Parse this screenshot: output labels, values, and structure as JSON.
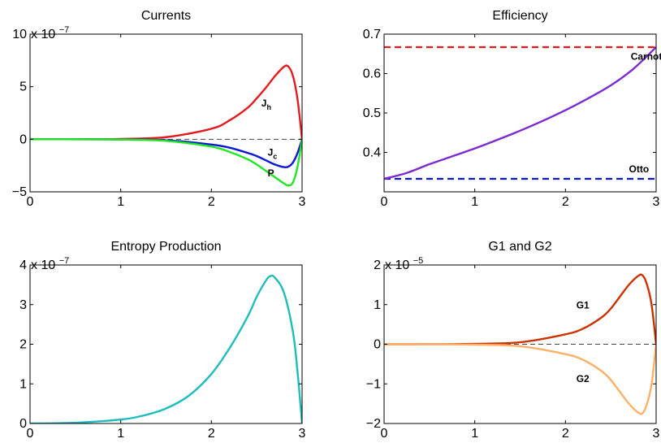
{
  "colors": {
    "axis": "#000000"
  },
  "chart_data": [
    {
      "id": "currents",
      "type": "line",
      "title": "Currents",
      "xlim": [
        0,
        3
      ],
      "ylim": [
        -5,
        10
      ],
      "xticks": [
        0,
        1,
        2,
        3
      ],
      "yticks": [
        -5,
        0,
        5,
        10
      ],
      "xtick_labels": [
        "0",
        "1",
        "2",
        "3"
      ],
      "ytick_labels": [
        "−5",
        "0",
        "5",
        "10"
      ],
      "exponent": {
        "base": "x 10",
        "power": "−7"
      },
      "x": [
        0,
        0.5,
        1.0,
        1.5,
        2.0,
        2.2,
        2.4,
        2.5,
        2.6,
        2.7,
        2.8,
        2.85,
        2.9,
        2.95,
        3.0
      ],
      "series": [
        {
          "name": "J",
          "label_sub": "h",
          "color": "#e41a1c",
          "values": [
            0,
            0.003,
            0.03,
            0.2,
            1.0,
            1.8,
            3.0,
            3.9,
            4.9,
            6.0,
            6.9,
            6.9,
            6.0,
            3.8,
            0
          ]
        },
        {
          "name": "J",
          "label_sub": "c",
          "color": "#0a18d6",
          "values": [
            0,
            -0.002,
            -0.02,
            -0.1,
            -0.5,
            -0.8,
            -1.3,
            -1.6,
            -2.0,
            -2.4,
            -2.65,
            -2.6,
            -2.2,
            -1.3,
            0
          ]
        },
        {
          "name": "P",
          "color": "#22e622",
          "values": [
            0,
            -0.003,
            -0.03,
            -0.15,
            -0.7,
            -1.2,
            -1.9,
            -2.4,
            -3.0,
            -3.6,
            -4.2,
            -4.4,
            -4.1,
            -2.6,
            0
          ]
        }
      ],
      "annotations": [
        {
          "text": "J",
          "sub": "h",
          "x": 2.55,
          "y": 3.1
        },
        {
          "text": "J",
          "sub": "c",
          "x": 2.62,
          "y": -1.55
        },
        {
          "text": "P",
          "x": 2.62,
          "y": -3.55
        }
      ],
      "reference_line": {
        "y": 0,
        "color": "#444444"
      }
    },
    {
      "id": "efficiency",
      "type": "line",
      "title": "Efficiency",
      "xlim": [
        0,
        3
      ],
      "ylim": [
        0.3,
        0.7
      ],
      "xticks": [
        0,
        1,
        2,
        3
      ],
      "yticks": [
        0.4,
        0.5,
        0.6,
        0.7
      ],
      "xtick_labels": [
        "0",
        "1",
        "2",
        "3"
      ],
      "ytick_labels": [
        "0.4",
        "0.5",
        "0.6",
        "0.7"
      ],
      "x": [
        0,
        0.25,
        0.5,
        0.75,
        1.0,
        1.25,
        1.5,
        1.75,
        2.0,
        2.25,
        2.5,
        2.75,
        3.0
      ],
      "series": [
        {
          "name": "Efficiency",
          "color": "#7b2bd1",
          "values": [
            0.333,
            0.348,
            0.37,
            0.39,
            0.41,
            0.432,
            0.455,
            0.48,
            0.507,
            0.537,
            0.57,
            0.612,
            0.667
          ]
        }
      ],
      "hlines": [
        {
          "name": "Carnot",
          "y": 0.667,
          "color": "#e41a1c"
        },
        {
          "name": "Otto",
          "y": 0.333,
          "color": "#0a18d6"
        }
      ],
      "annotations": [
        {
          "text": "Carnot",
          "x": 2.72,
          "y": 0.635
        },
        {
          "text": "Otto",
          "x": 2.7,
          "y": 0.35
        }
      ]
    },
    {
      "id": "entropy",
      "type": "line",
      "title": "Entropy Production",
      "xlim": [
        0,
        3
      ],
      "ylim": [
        0,
        4
      ],
      "xticks": [
        0,
        1,
        2,
        3
      ],
      "yticks": [
        0,
        1,
        2,
        3,
        4
      ],
      "xtick_labels": [
        "0",
        "1",
        "2",
        "3"
      ],
      "ytick_labels": [
        "0",
        "1",
        "2",
        "3",
        "4"
      ],
      "exponent": {
        "base": "x 10",
        "power": "−7"
      },
      "x": [
        0,
        0.5,
        1.0,
        1.25,
        1.5,
        1.75,
        2.0,
        2.2,
        2.4,
        2.5,
        2.6,
        2.65,
        2.7,
        2.8,
        2.9,
        2.95,
        3.0
      ],
      "series": [
        {
          "name": "Entropy Production",
          "color": "#1dbdbd",
          "values": [
            0,
            0.02,
            0.1,
            0.2,
            0.38,
            0.7,
            1.25,
            1.9,
            2.7,
            3.2,
            3.6,
            3.72,
            3.68,
            3.3,
            2.3,
            1.3,
            0
          ]
        }
      ]
    },
    {
      "id": "g1g2",
      "type": "line",
      "title": "G1 and G2",
      "xlim": [
        0,
        3
      ],
      "ylim": [
        -2,
        2
      ],
      "xticks": [
        0,
        1,
        2,
        3
      ],
      "yticks": [
        -2,
        -1,
        0,
        1,
        2
      ],
      "xtick_labels": [
        "0",
        "1",
        "2",
        "3"
      ],
      "ytick_labels": [
        "−2",
        "−1",
        "0",
        "1",
        "2"
      ],
      "exponent": {
        "base": "x 10",
        "power": "−5"
      },
      "x": [
        0,
        0.5,
        1.0,
        1.5,
        2.0,
        2.2,
        2.4,
        2.5,
        2.6,
        2.7,
        2.8,
        2.85,
        2.9,
        2.95,
        3.0
      ],
      "series": [
        {
          "name": "G1",
          "color": "#cc3300",
          "values": [
            0,
            0.001,
            0.01,
            0.05,
            0.25,
            0.4,
            0.68,
            0.9,
            1.2,
            1.5,
            1.72,
            1.74,
            1.5,
            1.0,
            0
          ]
        },
        {
          "name": "G2",
          "color": "#ffb066",
          "values": [
            0,
            -0.001,
            -0.01,
            -0.05,
            -0.25,
            -0.4,
            -0.68,
            -0.9,
            -1.2,
            -1.5,
            -1.72,
            -1.74,
            -1.5,
            -1.0,
            0
          ]
        }
      ],
      "annotations": [
        {
          "text": "G1",
          "x": 2.12,
          "y": 0.9
        },
        {
          "text": "G2",
          "x": 2.12,
          "y": -0.95
        }
      ],
      "reference_line": {
        "y": 0,
        "color": "#444444"
      }
    }
  ]
}
